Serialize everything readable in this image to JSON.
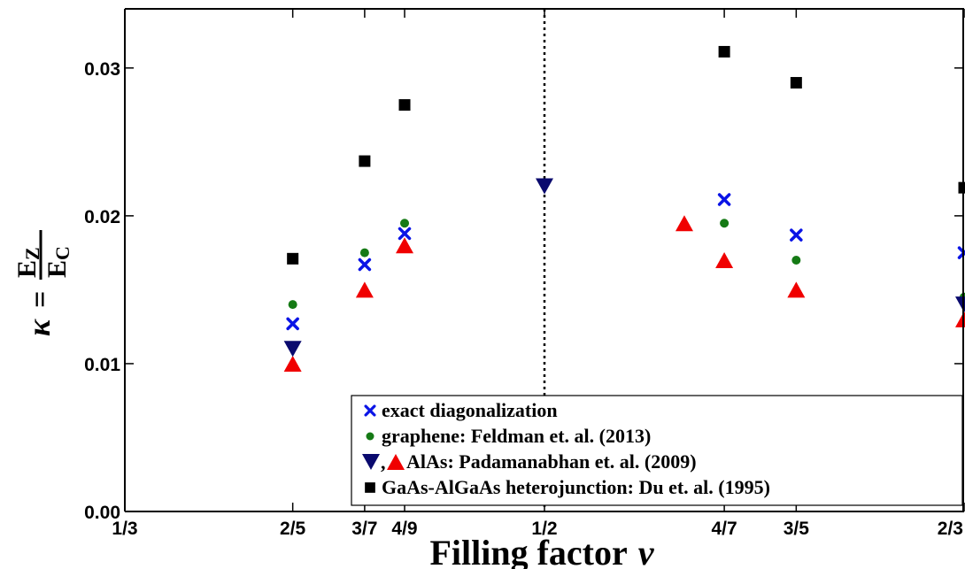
{
  "chart_data": {
    "type": "scatter",
    "xlabel_text": "Filling factor",
    "xlabel_symbol": "ν",
    "ylabel": {
      "kappa": "κ",
      "equals": "=",
      "numerator_main": "E",
      "numerator_sub": "Z",
      "denominator_main": "E",
      "denominator_sub": "C"
    },
    "xlim": [
      0.3333,
      0.6667
    ],
    "ylim": [
      0,
      0.034
    ],
    "x_ticks": [
      {
        "value": 0.3333,
        "label": "1/3"
      },
      {
        "value": 0.4,
        "label": "2/5"
      },
      {
        "value": 0.42857,
        "label": "3/7"
      },
      {
        "value": 0.44444,
        "label": "4/9"
      },
      {
        "value": 0.5,
        "label": "1/2"
      },
      {
        "value": 0.57143,
        "label": "4/7"
      },
      {
        "value": 0.6,
        "label": "3/5"
      },
      {
        "value": 0.6667,
        "label": "2/3"
      }
    ],
    "y_ticks": [
      {
        "value": 0,
        "label": "0.00"
      },
      {
        "value": 0.01,
        "label": "0.01"
      },
      {
        "value": 0.02,
        "label": "0.02"
      },
      {
        "value": 0.03,
        "label": "0.03"
      }
    ],
    "vertical_line_x": 0.5,
    "grid": false,
    "legend_position": "bottom-right",
    "series": [
      {
        "name": "exact diagonalization",
        "marker": "x",
        "color": "#0a14e6",
        "points": [
          [
            0.4,
            0.0127
          ],
          [
            0.42857,
            0.0167
          ],
          [
            0.44444,
            0.0188
          ],
          [
            0.57143,
            0.0211
          ],
          [
            0.6,
            0.0187
          ],
          [
            0.6667,
            0.0175
          ]
        ]
      },
      {
        "name": "graphene: Feldman et. al. (2013)",
        "marker": "circle",
        "color": "#157a15",
        "points": [
          [
            0.4,
            0.014
          ],
          [
            0.42857,
            0.0175
          ],
          [
            0.44444,
            0.0195
          ],
          [
            0.57143,
            0.0195
          ],
          [
            0.6,
            0.017
          ],
          [
            0.6667,
            0.0145
          ]
        ]
      },
      {
        "name": "AlAs: Padamanabhan et. al. (2009)",
        "legend_prefix": ",",
        "marker": "triangle-down",
        "color": "#0a0a6e",
        "points": [
          [
            0.4,
            0.011
          ],
          [
            0.5,
            0.022
          ],
          [
            0.6667,
            0.014
          ]
        ]
      },
      {
        "name": "AlAs: Padamanabhan et. al. (2009)",
        "marker": "triangle-up",
        "color": "#f00000",
        "points": [
          [
            0.4,
            0.01
          ],
          [
            0.42857,
            0.015
          ],
          [
            0.44444,
            0.018
          ],
          [
            0.55556,
            0.0195
          ],
          [
            0.57143,
            0.017
          ],
          [
            0.6,
            0.015
          ],
          [
            0.6667,
            0.013
          ]
        ]
      },
      {
        "name": "GaAs-AlGaAs heterojunction: Du et. al. (1995)",
        "marker": "square",
        "color": "#000000",
        "points": [
          [
            0.4,
            0.0171
          ],
          [
            0.42857,
            0.0237
          ],
          [
            0.44444,
            0.0275
          ],
          [
            0.57143,
            0.0311
          ],
          [
            0.6,
            0.029
          ],
          [
            0.6667,
            0.0219
          ]
        ]
      }
    ],
    "legend": [
      {
        "marker": "x",
        "color": "#0a14e6",
        "text": "exact diagonalization"
      },
      {
        "marker": "circle",
        "color": "#157a15",
        "text": "graphene: Feldman et. al. (2013)"
      },
      {
        "marker": "down-up",
        "color": "#0a0a6e",
        "color2": "#f00000",
        "text": "AlAs: Padamanabhan et. al. (2009)"
      },
      {
        "marker": "square",
        "color": "#000000",
        "text": "GaAs-AlGaAs heterojunction: Du et. al. (1995)"
      }
    ]
  }
}
